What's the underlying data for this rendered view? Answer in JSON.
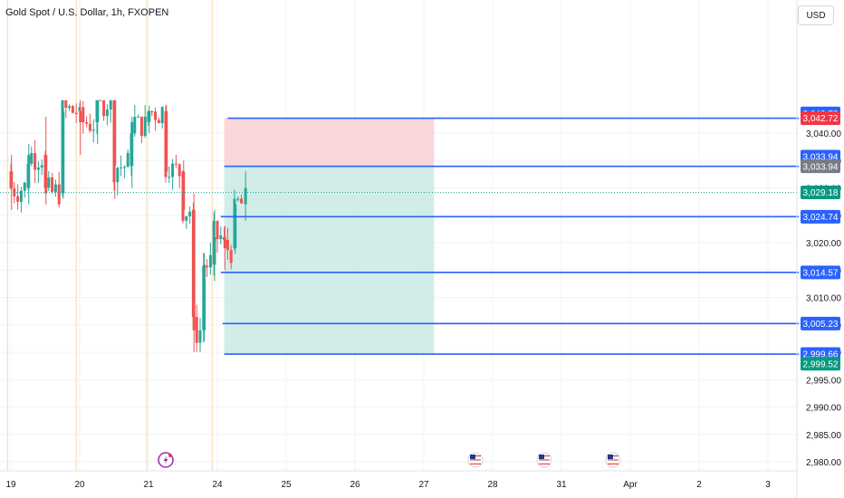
{
  "header": {
    "symbol_title": "Gold Spot / U.S. Dollar, 1h, FXOPEN",
    "currency": "USD"
  },
  "colors": {
    "up": "#26a69a",
    "down": "#ef5350",
    "level_line": "#2962ff",
    "stop_zone": "#f7c9cf",
    "target_zone": "#cdebe5",
    "session_break": "#f5d9a8"
  },
  "events": [
    {
      "x": 4.5,
      "icon": "lightning-icon"
    },
    {
      "x": 13.5,
      "icon": "us-flag-icon"
    },
    {
      "x": 15.5,
      "icon": "us-flag-icon"
    },
    {
      "x": 17.5,
      "icon": "us-flag-icon"
    }
  ],
  "chart_data": {
    "type": "candlestick",
    "title": "Gold Spot / U.S. Dollar, 1h, FXOPEN",
    "x_labels": [
      {
        "x": 0,
        "label": "19"
      },
      {
        "x": 2,
        "label": "20"
      },
      {
        "x": 4,
        "label": "21"
      },
      {
        "x": 6,
        "label": "24"
      },
      {
        "x": 8,
        "label": "25"
      },
      {
        "x": 10,
        "label": "26"
      },
      {
        "x": 12,
        "label": "27"
      },
      {
        "x": 14,
        "label": "28"
      },
      {
        "x": 16,
        "label": "31"
      },
      {
        "x": 18,
        "label": "Apr"
      },
      {
        "x": 20,
        "label": "2"
      },
      {
        "x": 22,
        "label": "3"
      }
    ],
    "xlim": [
      -0.3,
      22.5
    ],
    "ylim": [
      2978,
      3046
    ],
    "y_ticks": [
      3040,
      3035,
      3030,
      3025,
      3020,
      3015,
      3010,
      3005,
      3000,
      2995,
      2990,
      2985,
      2980
    ],
    "y_tick_labels": [
      "3,040.00",
      "3,035.00",
      "3,030.00",
      "3,025.00",
      "3,020.00",
      "3,015.00",
      "3,010.00",
      "3,005.00",
      "3,000.00",
      "2,995.00",
      "2,990.00",
      "2,985.00",
      "2,980.00"
    ],
    "candles_summary": [
      {
        "x": 0.0,
        "o": 3033,
        "h": 3036,
        "l": 3026,
        "c": 3030
      },
      {
        "x": 0.5,
        "o": 3030,
        "h": 3038,
        "l": 3027,
        "c": 3036
      },
      {
        "x": 1.0,
        "o": 3036,
        "h": 3043,
        "l": 3027,
        "c": 3029
      },
      {
        "x": 1.5,
        "o": 3029,
        "h": 3046,
        "l": 3028,
        "c": 3044
      },
      {
        "x": 2.0,
        "o": 3044,
        "h": 3049,
        "l": 3036,
        "c": 3042
      },
      {
        "x": 2.5,
        "o": 3042,
        "h": 3049,
        "l": 3038,
        "c": 3046
      },
      {
        "x": 3.0,
        "o": 3046,
        "h": 3047,
        "l": 3028,
        "c": 3034
      },
      {
        "x": 3.5,
        "o": 3034,
        "h": 3043,
        "l": 3030,
        "c": 3042
      },
      {
        "x": 4.0,
        "o": 3042,
        "h": 3045,
        "l": 3040,
        "c": 3044
      },
      {
        "x": 4.5,
        "o": 3044,
        "h": 3045,
        "l": 3032,
        "c": 3033
      },
      {
        "x": 5.0,
        "o": 3033,
        "h": 3035,
        "l": 3024,
        "c": 3026
      },
      {
        "x": 5.3,
        "o": 3026,
        "h": 3029,
        "l": 3000,
        "c": 3004
      },
      {
        "x": 5.6,
        "o": 3004,
        "h": 3018,
        "l": 3002,
        "c": 3016
      },
      {
        "x": 5.9,
        "o": 3016,
        "h": 3026,
        "l": 3013,
        "c": 3021
      },
      {
        "x": 6.2,
        "o": 3021,
        "h": 3023,
        "l": 3015,
        "c": 3019
      },
      {
        "x": 6.5,
        "o": 3019,
        "h": 3028,
        "l": 3018,
        "c": 3027
      },
      {
        "x": 6.8,
        "o": 3027,
        "h": 3033,
        "l": 3024,
        "c": 3030
      }
    ],
    "levels": [
      {
        "price": 3042.72,
        "label": "3,042.72",
        "color": "#2962ff"
      },
      {
        "price": 3033.94,
        "label": "3,033.94",
        "color": "#2962ff"
      },
      {
        "price": 3024.74,
        "label": "3,024.74",
        "color": "#2962ff"
      },
      {
        "price": 3014.57,
        "label": "3,014.57",
        "color": "#2962ff"
      },
      {
        "price": 3005.23,
        "label": "3,005.23",
        "color": "#2962ff"
      },
      {
        "price": 2999.66,
        "label": "2,999.66",
        "color": "#2962ff"
      }
    ],
    "position": {
      "x_start": 6.2,
      "x_end": 12.3,
      "stop": 3042.72,
      "entry": 3033.94,
      "target": 2999.66
    },
    "price_labels": [
      {
        "price": 3043.6,
        "label": "3,042.72",
        "color": "#2962ff"
      },
      {
        "price": 3042.72,
        "label": "3,042.72",
        "color": "#f23645"
      },
      {
        "price": 3035.7,
        "label": "3,033.94",
        "color": "#2962ff"
      },
      {
        "price": 3033.94,
        "label": "3,033.94",
        "color": "#787b86"
      },
      {
        "price": 3029.18,
        "label": "3,029.18",
        "color": "#089981"
      },
      {
        "price": 3024.74,
        "label": "3,024.74",
        "color": "#2962ff"
      },
      {
        "price": 3014.57,
        "label": "3,014.57",
        "color": "#2962ff"
      },
      {
        "price": 3005.23,
        "label": "3,005.23",
        "color": "#2962ff"
      },
      {
        "price": 2999.66,
        "label": "2,999.66",
        "color": "#2962ff"
      },
      {
        "price": 2997.9,
        "label": "2,999.52",
        "color": "#089981"
      }
    ],
    "last_price": 3029.18,
    "grid": true
  }
}
